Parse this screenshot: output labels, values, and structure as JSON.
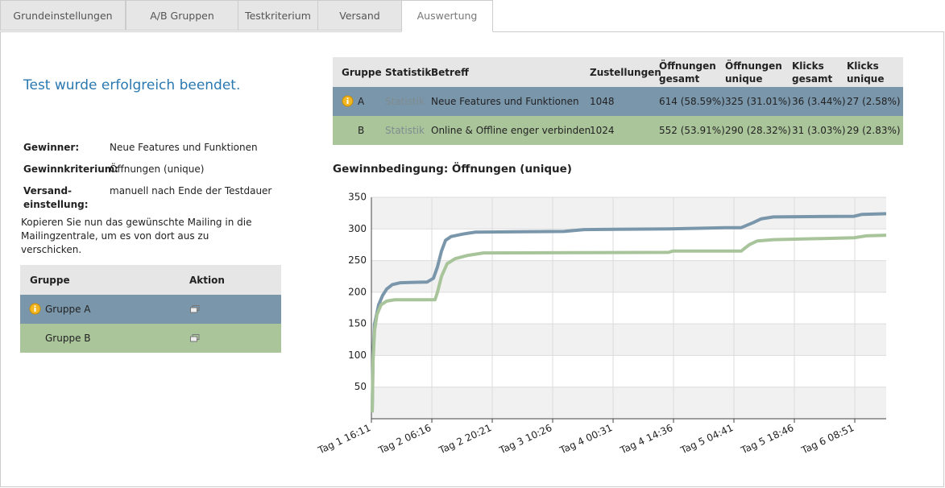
{
  "tabs": [
    "Grundeinstellungen",
    "A/B Gruppen",
    "Testkriterium",
    "Versand",
    "Auswertung"
  ],
  "status": "Test wurde erfolgreich beendet.",
  "summary": [
    {
      "label": "Gewinner:",
      "value": "Neue Features und Funktionen"
    },
    {
      "label": "Gewinnkriterium:",
      "value": "Öffnungen (unique)"
    },
    {
      "label": "Versand-einstellung:",
      "value": "manuell nach Ende der Testdauer"
    }
  ],
  "copy_note": "Kopieren Sie nun das gewünschte Mailing in die Mailingzentrale, um es von dort aus zu verschicken.",
  "groups_table": {
    "headers": [
      "Gruppe",
      "Aktion"
    ],
    "rows": [
      "Gruppe A",
      "Gruppe B"
    ]
  },
  "results_table": {
    "headers": [
      "Gruppe",
      "Statistik",
      "Betreff",
      "Zustellungen",
      "Öffnungen gesamt",
      "Öffnungen unique",
      "Klicks gesamt",
      "Klicks unique"
    ],
    "rows": [
      [
        "A",
        "Statistik",
        "Neue Features und Funktionen",
        "1048",
        "614 (58.59%)",
        "325 (31.01%)",
        "36 (3.44%)",
        "27 (2.58%)"
      ],
      [
        "B",
        "Statistik",
        "Online & Offline enger verbinden",
        "1024",
        "552 (53.91%)",
        "290 (28.32%)",
        "31 (3.03%)",
        "29 (2.83%)"
      ]
    ]
  },
  "chart_data": {
    "type": "line",
    "title": "Gewinnbedingung: Öffnungen (unique)",
    "xlim": [
      16.18,
      136.17
    ],
    "xticks": [
      {
        "value": 16.18,
        "label": "Tag 1 16:11"
      },
      {
        "value": 30.27,
        "label": "Tag 2 06:16"
      },
      {
        "value": 44.35,
        "label": "Tag 2 20:21"
      },
      {
        "value": 58.43,
        "label": "Tag 3 10:26"
      },
      {
        "value": 72.52,
        "label": "Tag 4 00:31"
      },
      {
        "value": 86.6,
        "label": "Tag 4 14:36"
      },
      {
        "value": 100.68,
        "label": "Tag 5 04:41"
      },
      {
        "value": 114.77,
        "label": "Tag 5 18:46"
      },
      {
        "value": 128.85,
        "label": "Tag 6 08:51"
      }
    ],
    "ylim": [
      0,
      350
    ],
    "yticks": [
      50,
      100,
      150,
      200,
      250,
      300,
      350
    ],
    "grid": true,
    "series": [
      {
        "color": "#7a96ab",
        "x": [
          16.37,
          16.56,
          16.93,
          17.87,
          18.8,
          19.74,
          21.06,
          22.94,
          29.14,
          30.64,
          31.58,
          32.52,
          33.46,
          34.77,
          37.59,
          40.41,
          61.06,
          65.75,
          85.47,
          98.61,
          102.37,
          105.18,
          107.06,
          109.88,
          128.66,
          130.54,
          136.17
        ],
        "values": [
          10,
          100,
          150,
          180,
          195,
          205,
          212,
          215,
          216,
          222,
          240,
          265,
          282,
          288,
          292,
          295,
          296,
          299,
          300,
          302,
          302,
          310,
          316,
          319,
          320,
          323,
          324
        ]
      },
      {
        "color": "#a8c49a",
        "x": [
          16.37,
          16.56,
          16.93,
          17.49,
          18.43,
          19.74,
          21.63,
          31.01,
          31.58,
          32.52,
          33.83,
          35.71,
          38.53,
          42.28,
          85.47,
          86.41,
          102.37,
          104.25,
          106.12,
          109.88,
          128.66,
          131.48,
          136.17
        ],
        "values": [
          10,
          90,
          140,
          165,
          180,
          186,
          188,
          188,
          200,
          225,
          245,
          253,
          258,
          262,
          263,
          265,
          265,
          275,
          281,
          283,
          286,
          289,
          290
        ]
      }
    ]
  }
}
